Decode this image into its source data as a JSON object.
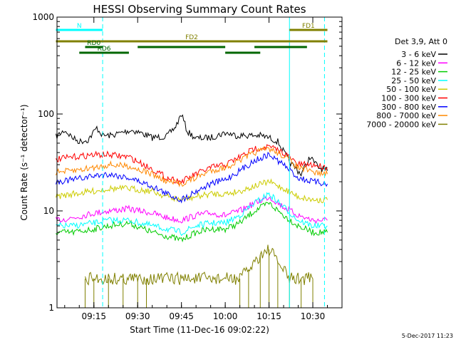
{
  "chart_data": {
    "type": "line",
    "title": "HESSI Observing Summary Count Rates",
    "xlabel": "Start Time (11-Dec-16 09:02:22)",
    "ylabel": "Count Rate (s⁻¹ detector⁻¹)",
    "y_scale": "log",
    "ylim": [
      1,
      1000
    ],
    "xlim": [
      "09:02:22",
      "10:40:00"
    ],
    "x_ticks": [
      "09:15",
      "09:30",
      "09:45",
      "10:00",
      "10:15",
      "10:30"
    ],
    "y_ticks": [
      "1",
      "10",
      "100",
      "1000"
    ],
    "legend_header": "Det 3,9, Att 0",
    "legend_position": "right",
    "footer_date": "5-Dec-2017 11:23",
    "series": [
      {
        "name": "3 - 6 keV",
        "color": "#000000",
        "x": [
          "09:02",
          "09:05",
          "09:08",
          "09:10",
          "09:13",
          "09:16",
          "09:18",
          "09:21",
          "09:25",
          "09:28",
          "09:31",
          "09:35",
          "09:40",
          "09:43",
          "09:45",
          "09:47",
          "09:50",
          "09:55",
          "10:00",
          "10:04",
          "10:08",
          "10:12",
          "10:15",
          "10:18",
          "10:22",
          "10:26",
          "10:29",
          "10:32",
          "10:35"
        ],
        "values": [
          58,
          68,
          56,
          52,
          54,
          72,
          60,
          60,
          65,
          68,
          64,
          57,
          59,
          74,
          100,
          66,
          56,
          57,
          64,
          60,
          60,
          60,
          57,
          52,
          32,
          24,
          36,
          28,
          26
        ]
      },
      {
        "name": "6 - 12 keV",
        "color": "#ff00ff",
        "x": [
          "09:02",
          "09:08",
          "09:15",
          "09:20",
          "09:27",
          "09:35",
          "09:40",
          "09:45",
          "09:50",
          "09:55",
          "10:00",
          "10:05",
          "10:10",
          "10:15",
          "10:20",
          "10:25",
          "10:30",
          "10:35"
        ],
        "values": [
          8,
          8.5,
          9.5,
          10,
          10.5,
          9.5,
          8.5,
          8,
          9,
          9.5,
          9,
          10,
          12,
          14,
          11,
          9,
          8,
          8
        ]
      },
      {
        "name": "12 - 25 keV",
        "color": "#00cc00",
        "x": [
          "09:02",
          "09:08",
          "09:15",
          "09:20",
          "09:27",
          "09:35",
          "09:40",
          "09:45",
          "09:50",
          "09:55",
          "10:00",
          "10:05",
          "10:10",
          "10:15",
          "10:20",
          "10:25",
          "10:30",
          "10:35"
        ],
        "values": [
          6,
          6,
          6.5,
          7,
          7.5,
          6,
          5.5,
          5,
          6,
          6.5,
          6.5,
          7.5,
          10,
          12,
          9,
          7,
          6,
          6
        ]
      },
      {
        "name": "25 - 50 keV",
        "color": "#00ffff",
        "x": [
          "09:02",
          "09:08",
          "09:15",
          "09:20",
          "09:27",
          "09:35",
          "09:40",
          "09:45",
          "09:50",
          "09:55",
          "10:00",
          "10:05",
          "10:10",
          "10:15",
          "10:20",
          "10:25",
          "10:30",
          "10:35"
        ],
        "values": [
          7,
          7,
          7.5,
          8,
          8,
          7,
          6.5,
          6,
          7,
          7.5,
          7.5,
          9,
          12,
          15,
          11,
          8,
          7,
          7
        ]
      },
      {
        "name": "50 - 100 keV",
        "color": "#cccc00",
        "x": [
          "09:02",
          "09:08",
          "09:15",
          "09:20",
          "09:27",
          "09:35",
          "09:40",
          "09:45",
          "09:50",
          "09:55",
          "10:00",
          "10:05",
          "10:10",
          "10:15",
          "10:20",
          "10:25",
          "10:30",
          "10:35"
        ],
        "values": [
          14,
          15,
          16,
          17,
          17,
          16,
          14,
          13,
          14,
          15,
          15,
          16,
          18,
          20,
          17,
          14,
          13,
          13
        ]
      },
      {
        "name": "100 - 300 keV",
        "color": "#ff0000",
        "x": [
          "09:02",
          "09:08",
          "09:15",
          "09:20",
          "09:27",
          "09:35",
          "09:40",
          "09:45",
          "09:50",
          "09:55",
          "10:00",
          "10:05",
          "10:10",
          "10:15",
          "10:20",
          "10:25",
          "10:30",
          "10:35"
        ],
        "values": [
          34,
          36,
          38,
          38,
          36,
          27,
          22,
          20,
          24,
          28,
          30,
          36,
          44,
          46,
          40,
          30,
          30,
          28
        ]
      },
      {
        "name": "300 - 800 keV",
        "color": "#0000ff",
        "x": [
          "09:02",
          "09:08",
          "09:15",
          "09:20",
          "09:27",
          "09:35",
          "09:40",
          "09:45",
          "09:50",
          "09:55",
          "10:00",
          "10:05",
          "10:10",
          "10:15",
          "10:20",
          "10:25",
          "10:30",
          "10:35"
        ],
        "values": [
          20,
          21,
          23,
          24,
          22,
          18,
          15,
          13,
          16,
          19,
          21,
          26,
          33,
          38,
          30,
          22,
          20,
          19
        ]
      },
      {
        "name": "800 - 7000 keV",
        "color": "#ff8800",
        "x": [
          "09:02",
          "09:08",
          "09:15",
          "09:20",
          "09:27",
          "09:35",
          "09:40",
          "09:45",
          "09:50",
          "09:55",
          "10:00",
          "10:05",
          "10:10",
          "10:15",
          "10:20",
          "10:25",
          "10:30",
          "10:35"
        ],
        "values": [
          25,
          26,
          28,
          30,
          29,
          24,
          20,
          19,
          22,
          26,
          28,
          33,
          40,
          44,
          37,
          28,
          25,
          24
        ]
      },
      {
        "name": "7000 - 20000 keV",
        "color": "#808000",
        "x": [
          "09:12",
          "09:15",
          "09:20",
          "09:25",
          "09:30",
          "09:33",
          "10:05",
          "10:08",
          "10:12",
          "10:15",
          "10:18",
          "10:22",
          "10:26",
          "10:30"
        ],
        "values": [
          2,
          2,
          2,
          2,
          2,
          2,
          2,
          2.5,
          3.5,
          4,
          3,
          2,
          2,
          2
        ]
      }
    ],
    "flags": [
      {
        "name": "N",
        "color": "#00ffff",
        "intervals": [
          [
            "09:02",
            "09:18"
          ],
          [
            "10:22",
            "10:35"
          ]
        ]
      },
      {
        "name": "FD1",
        "color": "#808000",
        "intervals": [
          [
            "10:22",
            "10:35"
          ]
        ]
      },
      {
        "name": "FD2",
        "color": "#808000",
        "intervals": [
          [
            "09:02",
            "10:35"
          ]
        ]
      },
      {
        "name": "RD0",
        "color": "#006600",
        "intervals": [
          [
            "09:12",
            "09:18"
          ],
          [
            "09:30",
            "10:00"
          ],
          [
            "10:10",
            "10:28"
          ]
        ]
      },
      {
        "name": "RD6",
        "color": "#006600",
        "intervals": [
          [
            "09:10",
            "09:27"
          ],
          [
            "10:00",
            "10:12"
          ]
        ]
      }
    ],
    "annotation_lines": [
      {
        "x": "09:18",
        "color": "#00ffff",
        "style": "dashed"
      },
      {
        "x": "10:22",
        "color": "#00ffff",
        "style": "solid"
      },
      {
        "x": "10:34",
        "color": "#00ffff",
        "style": "dashed"
      }
    ]
  }
}
